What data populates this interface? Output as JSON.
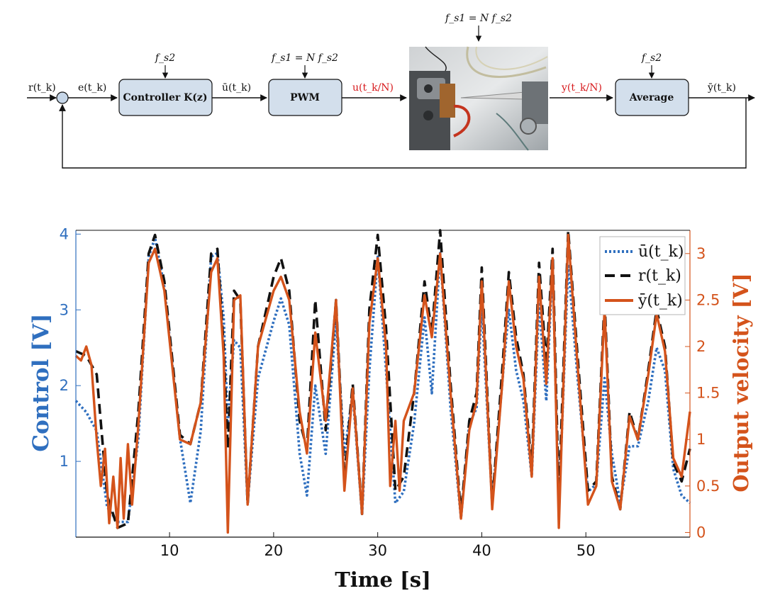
{
  "diagram": {
    "signals": {
      "r": "r(t_k)",
      "e": "e(t_k)",
      "ubar": "ū(t_k)",
      "u": "u(t_k/N)",
      "y": "y(t_k/N)",
      "ybar": "ȳ(t_k)"
    },
    "blocks": {
      "controller": "Controller K(z)",
      "pwm": "PWM",
      "average": "Average"
    },
    "rates": {
      "controller": "f_s2",
      "pwm": "f_s1 = N f_s2",
      "plant": "f_s1 = N f_s2",
      "average": "f_s2"
    },
    "plant_image": "photo-of-experimental-setup"
  },
  "chart_data": {
    "type": "line",
    "xlabel": "Time [s]",
    "ylabel_left": "Control [V]",
    "ylabel_right": "Output velocity [V]",
    "xlim": [
      1,
      60
    ],
    "ylim_left": [
      0,
      4.05
    ],
    "ylim_right": [
      -0.05,
      3.25
    ],
    "xticks": [
      10,
      20,
      30,
      40,
      50
    ],
    "yticks_left": [
      1,
      2,
      3,
      4
    ],
    "yticks_right": [
      0,
      0.5,
      1,
      1.5,
      2,
      2.5,
      3
    ],
    "legend_position": "top-right",
    "series": [
      {
        "name": "ū(t_k)",
        "axis": "left",
        "style": "dotted",
        "color": "#2f6fbf",
        "x": [
          1,
          2,
          3,
          4,
          5,
          6,
          7,
          8,
          8.6,
          9.5,
          11,
          12,
          13,
          14,
          14.6,
          15.2,
          15.6,
          16.2,
          16.8,
          17.5,
          18.5,
          20,
          20.7,
          21.5,
          22.5,
          23.2,
          24,
          25,
          26,
          26.8,
          27.6,
          28.5,
          29.2,
          30,
          30.8,
          31.7,
          32.5,
          33.5,
          34.5,
          35.2,
          36,
          37,
          38,
          38.8,
          39.5,
          40,
          41,
          42,
          42.6,
          43.3,
          44,
          44.8,
          45.5,
          46.2,
          46.8,
          47.4,
          48.3,
          49.2,
          50.2,
          51,
          51.8,
          52.5,
          53.3,
          54.2,
          55,
          56,
          56.8,
          57.6,
          58.4,
          59.2,
          60
        ],
        "y": [
          1.8,
          1.65,
          1.4,
          0.4,
          0.2,
          0.2,
          1.3,
          3.7,
          3.95,
          3.3,
          1.3,
          0.45,
          1.4,
          3.7,
          3.75,
          2.9,
          1.5,
          2.6,
          2.5,
          0.45,
          2.1,
          2.85,
          3.15,
          2.8,
          1.1,
          0.55,
          2.0,
          1.1,
          2.85,
          1.1,
          1.9,
          0.3,
          2.2,
          3.7,
          2.2,
          0.45,
          0.6,
          1.5,
          2.9,
          1.9,
          3.75,
          1.7,
          0.25,
          1.5,
          1.7,
          3.05,
          0.45,
          2.1,
          3.0,
          2.2,
          1.8,
          0.8,
          3.1,
          1.8,
          3.6,
          0.35,
          3.6,
          2.1,
          0.6,
          0.7,
          2.1,
          1.1,
          0.45,
          1.2,
          1.2,
          1.8,
          2.5,
          2.2,
          0.9,
          0.55,
          0.45
        ]
      },
      {
        "name": "r(t_k)",
        "axis": "right",
        "style": "dashed",
        "color": "#111111",
        "x": [
          1,
          2,
          3,
          4,
          5,
          6,
          7,
          8,
          8.6,
          9.5,
          11,
          12,
          13,
          14,
          14.6,
          15.2,
          15.6,
          16.2,
          16.8,
          17.5,
          18.5,
          20,
          20.7,
          21.5,
          22.5,
          23.2,
          24,
          25,
          26,
          26.8,
          27.6,
          28.5,
          29.2,
          30,
          30.8,
          31.7,
          32.5,
          33.5,
          34.5,
          35.2,
          36,
          37,
          38,
          38.8,
          39.5,
          40,
          41,
          42,
          42.6,
          43.3,
          44,
          44.8,
          45.5,
          46.2,
          46.8,
          47.4,
          48.3,
          49.2,
          50.2,
          51,
          51.8,
          52.5,
          53.3,
          54.2,
          55,
          56,
          56.8,
          57.6,
          58.4,
          59.2,
          60
        ],
        "y": [
          1.95,
          1.9,
          1.7,
          0.4,
          0.05,
          0.1,
          1.3,
          3.0,
          3.2,
          2.7,
          1.05,
          0.95,
          1.4,
          3.0,
          3.05,
          2.0,
          0.9,
          2.6,
          2.5,
          0.3,
          2.0,
          2.75,
          2.95,
          2.6,
          1.2,
          0.9,
          2.5,
          1.1,
          2.5,
          0.6,
          1.6,
          0.2,
          2.4,
          3.2,
          2.2,
          0.45,
          0.6,
          1.5,
          2.7,
          2.15,
          3.25,
          1.6,
          0.2,
          1.2,
          1.5,
          2.85,
          0.3,
          1.8,
          2.8,
          2.1,
          1.7,
          0.7,
          2.9,
          1.8,
          3.05,
          0.35,
          3.25,
          1.9,
          0.45,
          0.55,
          2.5,
          0.6,
          0.25,
          1.3,
          1.0,
          1.75,
          2.4,
          2.0,
          0.75,
          0.55,
          0.9
        ]
      },
      {
        "name": "ȳ(t_k)",
        "axis": "right",
        "style": "solid",
        "color": "#d4531b",
        "x": [
          1,
          1.5,
          2,
          2.5,
          3,
          3.4,
          3.8,
          4.2,
          4.6,
          5,
          5.3,
          5.6,
          6,
          6.4,
          7,
          8,
          8.6,
          9.5,
          11,
          12,
          13,
          14,
          14.6,
          15.2,
          15.6,
          16.2,
          16.8,
          17.5,
          18.5,
          20,
          20.7,
          21.5,
          22.5,
          23.2,
          24,
          25,
          26,
          26.8,
          27.6,
          28.5,
          29.2,
          30,
          30.8,
          31.2,
          31.7,
          32.1,
          32.5,
          33.5,
          34.5,
          35.2,
          36,
          37,
          38,
          38.8,
          39.5,
          40,
          41,
          42,
          42.6,
          43.3,
          44,
          44.8,
          45.5,
          46.2,
          46.8,
          47.4,
          48.3,
          49.2,
          50.2,
          51,
          51.8,
          52.5,
          53.3,
          54.2,
          55,
          56,
          56.8,
          57.6,
          58.4,
          59.2,
          60
        ],
        "y": [
          1.9,
          1.85,
          2.0,
          1.8,
          1.0,
          0.5,
          0.9,
          0.1,
          0.6,
          0.05,
          0.8,
          0.15,
          0.95,
          0.3,
          1.15,
          2.9,
          3.05,
          2.6,
          1.0,
          0.95,
          1.4,
          2.8,
          2.95,
          1.9,
          0.0,
          2.5,
          2.55,
          0.3,
          2.0,
          2.6,
          2.75,
          2.5,
          1.3,
          0.85,
          2.15,
          1.2,
          2.5,
          0.45,
          1.55,
          0.2,
          2.25,
          2.95,
          2.0,
          0.5,
          1.2,
          0.45,
          1.2,
          1.5,
          2.55,
          2.1,
          3.0,
          1.5,
          0.15,
          1.1,
          1.4,
          2.7,
          0.25,
          1.65,
          2.7,
          2.0,
          1.65,
          0.6,
          2.75,
          1.6,
          2.95,
          0.05,
          3.2,
          1.8,
          0.3,
          0.5,
          2.4,
          0.55,
          0.25,
          1.25,
          1.0,
          1.7,
          2.35,
          1.95,
          0.8,
          0.6,
          1.3
        ]
      }
    ]
  }
}
